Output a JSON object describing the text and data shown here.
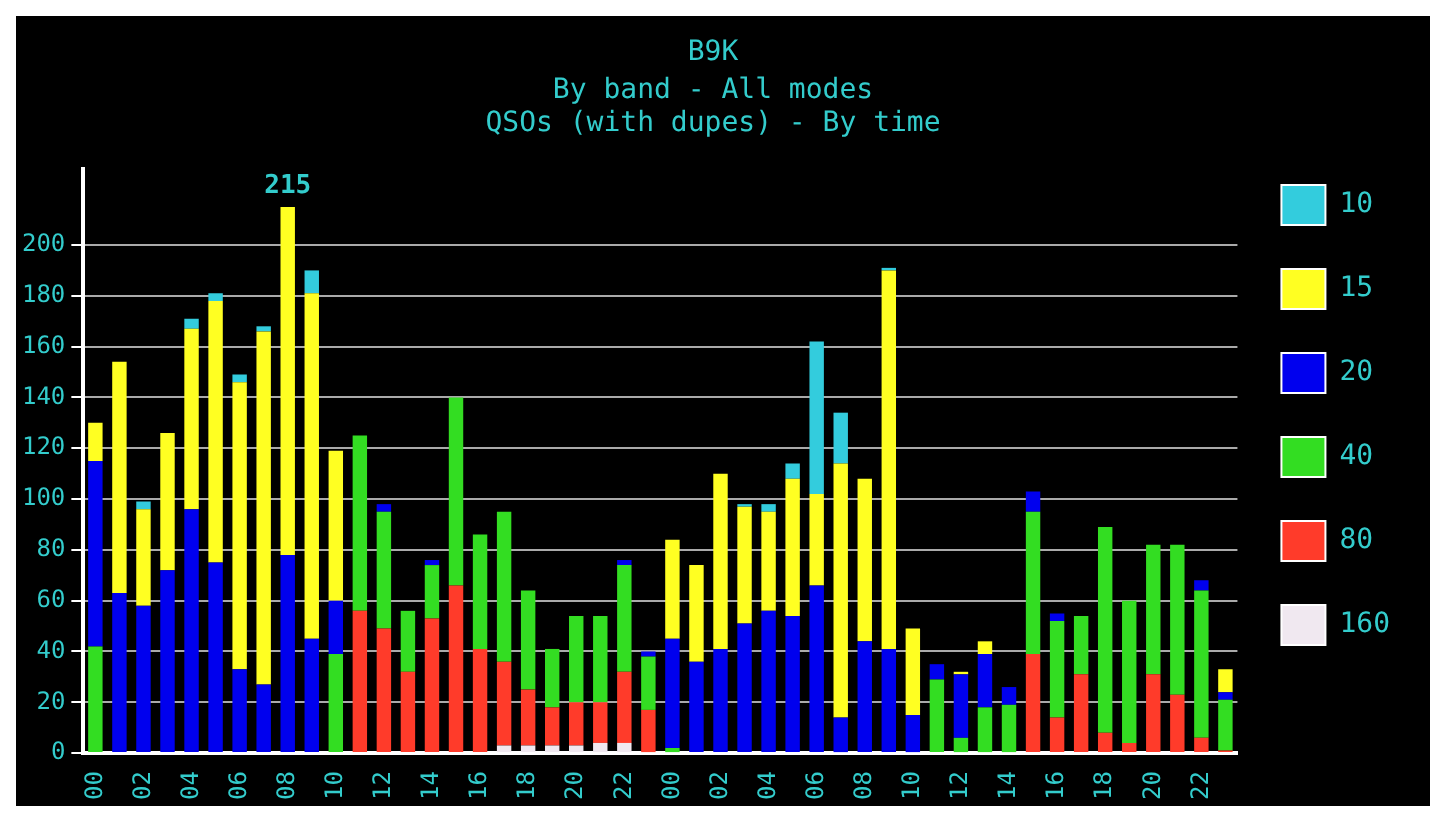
{
  "chart_data": {
    "type": "bar",
    "title": "B9K",
    "subtitle": "By band - All modes\nQSOs (with dupes) - By time",
    "stacked": true,
    "categories": [
      "00",
      null,
      "02",
      null,
      "04",
      null,
      "06",
      null,
      "08",
      null,
      "10",
      null,
      "12",
      null,
      "14",
      null,
      "16",
      null,
      "18",
      null,
      "20",
      null,
      "22",
      null,
      "00",
      null,
      "02",
      null,
      "04",
      null,
      "06",
      null,
      "08",
      null,
      "10",
      null,
      "12",
      null,
      "14",
      null,
      "16",
      null,
      "18",
      null,
      "20",
      null,
      "22",
      null
    ],
    "series": [
      {
        "name": "160",
        "color": "#f0e8f0",
        "values": [
          0,
          0,
          0,
          0,
          0,
          0,
          0,
          0,
          0,
          0,
          0,
          0,
          0,
          0,
          0,
          0,
          0,
          3,
          3,
          3,
          3,
          4,
          4,
          0,
          0,
          0,
          0,
          0,
          0,
          0,
          0,
          0,
          0,
          0,
          0,
          0,
          0,
          0,
          0,
          0,
          0,
          0,
          0,
          0,
          null,
          0,
          0,
          0
        ]
      },
      {
        "name": "80",
        "color": "#ff3b2a",
        "values": [
          0,
          0,
          0,
          0,
          0,
          0,
          0,
          0,
          0,
          0,
          0,
          56,
          49,
          32,
          53,
          66,
          41,
          33,
          22,
          15,
          17,
          16,
          28,
          17,
          0,
          0,
          0,
          0,
          0,
          0,
          0,
          0,
          0,
          0,
          0,
          0,
          0,
          0,
          0,
          39,
          14,
          31,
          8,
          4,
          31,
          23,
          6,
          1
        ]
      },
      {
        "name": "40",
        "color": "#33dd22",
        "values": [
          42,
          0,
          0,
          0,
          0,
          0,
          0,
          0,
          0,
          0,
          39,
          69,
          46,
          24,
          21,
          74,
          45,
          59,
          39,
          23,
          34,
          34,
          42,
          21,
          2,
          0,
          0,
          0,
          0,
          0,
          0,
          0,
          0,
          0,
          0,
          29,
          6,
          18,
          19,
          56,
          38,
          23,
          81,
          56,
          51,
          59,
          58,
          20
        ]
      },
      {
        "name": "20",
        "color": "#0000ee",
        "values": [
          73,
          63,
          58,
          72,
          96,
          75,
          33,
          27,
          78,
          45,
          21,
          0,
          3,
          0,
          2,
          0,
          0,
          0,
          0,
          0,
          0,
          0,
          2,
          2,
          43,
          36,
          41,
          51,
          56,
          54,
          66,
          14,
          44,
          41,
          15,
          6,
          25,
          21,
          7,
          8,
          3,
          0,
          0,
          0,
          0,
          0,
          4,
          3
        ]
      },
      {
        "name": "15",
        "color": "#ffff22",
        "values": [
          15,
          91,
          38,
          54,
          71,
          103,
          113,
          139,
          137,
          136,
          59,
          0,
          0,
          0,
          0,
          0,
          0,
          0,
          0,
          0,
          0,
          0,
          0,
          0,
          39,
          38,
          69,
          46,
          39,
          54,
          36,
          100,
          64,
          149,
          34,
          0,
          1,
          5,
          0,
          0,
          0,
          0,
          0,
          0,
          0,
          0,
          0,
          9
        ]
      },
      {
        "name": "10",
        "color": "#33ccdd",
        "values": [
          0,
          0,
          3,
          0,
          4,
          3,
          3,
          2,
          0,
          9,
          0,
          0,
          0,
          0,
          0,
          0,
          0,
          0,
          0,
          0,
          0,
          0,
          0,
          0,
          0,
          0,
          0,
          1,
          3,
          6,
          60,
          20,
          0,
          1,
          0,
          0,
          0,
          0,
          0,
          0,
          0,
          0,
          0,
          0,
          0,
          0,
          0,
          0
        ]
      }
    ],
    "ylim": [
      0,
      230
    ],
    "yticks": [
      0,
      20,
      40,
      60,
      80,
      100,
      120,
      140,
      160,
      180,
      200
    ],
    "grid": "y",
    "legend": "right",
    "annotations": [
      {
        "text": "215",
        "x": "08",
        "y": 215
      }
    ]
  }
}
